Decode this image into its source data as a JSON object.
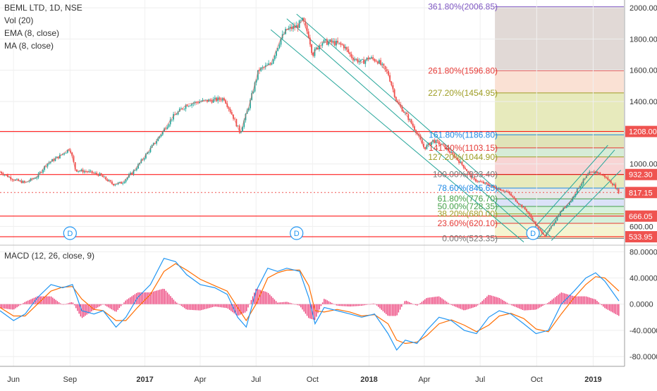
{
  "legend": {
    "symbol": "BEML LTD, 1D, NSE",
    "vol": "Vol (20)",
    "ema": "EMA (8, close)",
    "ma": "MA (8, close)",
    "macd": "MACD (12, 26, close, 9)"
  },
  "colors": {
    "up": "#26a69a",
    "down": "#ef5350",
    "channel": "#26a69a",
    "sr_line": "#ff0000",
    "macd_line": "#2196f3",
    "signal_line": "#ff6d00",
    "hist_pos": "#e91e63",
    "hist_neg": "#e91e63",
    "fib_label": "#4a4a4a",
    "price_tag_red": "#ef5350",
    "axis_text": "#333333"
  },
  "chart_data": [
    {
      "type": "candlestick",
      "title": "BEML LTD, 1D, NSE",
      "xlim": [
        "2016-05-10",
        "2019-02-20"
      ],
      "ylim": [
        480,
        2050
      ],
      "x_ticks": [
        "Jun",
        "Sep",
        "2017",
        "Apr",
        "Jul",
        "Oct",
        "2018",
        "Apr",
        "Jul",
        "Oct",
        "2019"
      ],
      "x_tick_dates": [
        "2016-06-01",
        "2016-09-01",
        "2017-01-01",
        "2017-04-01",
        "2017-07-01",
        "2017-10-01",
        "2018-01-01",
        "2018-04-01",
        "2018-07-01",
        "2018-10-01",
        "2019-01-01"
      ],
      "y_ticks": [
        "2000.00",
        "1800.00",
        "1600.00",
        "1400.00",
        "1200.00",
        "1000.00",
        "600.00"
      ],
      "y_tick_values": [
        2000,
        1800,
        1600,
        1400,
        1200,
        1000,
        600
      ],
      "price_path": [
        [
          "2016-05-10",
          950
        ],
        [
          "2016-06-01",
          900
        ],
        [
          "2016-06-20",
          880
        ],
        [
          "2016-07-10",
          920
        ],
        [
          "2016-07-25",
          1000
        ],
        [
          "2016-08-15",
          1050
        ],
        [
          "2016-09-01",
          1100
        ],
        [
          "2016-09-10",
          960
        ],
        [
          "2016-10-01",
          950
        ],
        [
          "2016-10-20",
          930
        ],
        [
          "2016-11-10",
          870
        ],
        [
          "2016-11-25",
          880
        ],
        [
          "2016-12-15",
          960
        ],
        [
          "2017-01-01",
          1050
        ],
        [
          "2017-01-20",
          1150
        ],
        [
          "2017-02-15",
          1300
        ],
        [
          "2017-03-10",
          1380
        ],
        [
          "2017-04-01",
          1400
        ],
        [
          "2017-04-25",
          1410
        ],
        [
          "2017-05-10",
          1420
        ],
        [
          "2017-05-25",
          1300
        ],
        [
          "2017-06-05",
          1200
        ],
        [
          "2017-06-20",
          1380
        ],
        [
          "2017-07-05",
          1600
        ],
        [
          "2017-07-25",
          1640
        ],
        [
          "2017-08-10",
          1800
        ],
        [
          "2017-08-20",
          1860
        ],
        [
          "2017-09-05",
          1880
        ],
        [
          "2017-09-15",
          1920
        ],
        [
          "2017-09-25",
          1820
        ],
        [
          "2017-10-01",
          1700
        ],
        [
          "2017-10-15",
          1780
        ],
        [
          "2017-11-01",
          1780
        ],
        [
          "2017-11-20",
          1760
        ],
        [
          "2017-12-05",
          1680
        ],
        [
          "2017-12-20",
          1650
        ],
        [
          "2018-01-01",
          1680
        ],
        [
          "2018-01-15",
          1660
        ],
        [
          "2018-02-01",
          1580
        ],
        [
          "2018-02-15",
          1400
        ],
        [
          "2018-03-05",
          1300
        ],
        [
          "2018-03-20",
          1200
        ],
        [
          "2018-04-01",
          1100
        ],
        [
          "2018-04-15",
          1150
        ],
        [
          "2018-05-01",
          1120
        ],
        [
          "2018-05-20",
          1050
        ],
        [
          "2018-06-05",
          980
        ],
        [
          "2018-06-20",
          900
        ],
        [
          "2018-07-05",
          880
        ],
        [
          "2018-07-25",
          850
        ],
        [
          "2018-08-15",
          820
        ],
        [
          "2018-09-01",
          750
        ],
        [
          "2018-09-15",
          700
        ],
        [
          "2018-09-28",
          620
        ],
        [
          "2018-10-05",
          580
        ],
        [
          "2018-10-15",
          540
        ],
        [
          "2018-10-25",
          600
        ],
        [
          "2018-11-10",
          700
        ],
        [
          "2018-11-25",
          760
        ],
        [
          "2018-12-10",
          860
        ],
        [
          "2018-12-25",
          940
        ],
        [
          "2019-01-05",
          950
        ],
        [
          "2019-01-20",
          920
        ],
        [
          "2019-02-05",
          860
        ],
        [
          "2019-02-12",
          817
        ]
      ],
      "fib_levels": [
        {
          "label": "361.80%(2006.85)",
          "value": 2006.85,
          "color": "#7e57c2"
        },
        {
          "label": "261.80%(1596.80)",
          "value": 1596.8,
          "color": "#e53935"
        },
        {
          "label": "227.20%(1454.95)",
          "value": 1454.95,
          "color": "#9e9d24"
        },
        {
          "label": "161.80%(1186.80)",
          "value": 1186.8,
          "color": "#1e88e5"
        },
        {
          "label": "141.40%(1103.15)",
          "value": 1103.15,
          "color": "#e53935"
        },
        {
          "label": "127.20%(1044.90)",
          "value": 1044.9,
          "color": "#9e9d24"
        },
        {
          "label": "100.00%(933.40)",
          "value": 933.4,
          "color": "#757575"
        },
        {
          "label": "78.60%(845.65)",
          "value": 845.65,
          "color": "#1e88e5"
        },
        {
          "label": "61.80%(776.70)",
          "value": 776.7,
          "color": "#43a047"
        },
        {
          "label": "50.00%(728.35)",
          "value": 728.35,
          "color": "#43a047"
        },
        {
          "label": "38.20%(680.00)",
          "value": 680.0,
          "color": "#9e9d24"
        },
        {
          "label": "23.60%(620.10)",
          "value": 620.1,
          "color": "#e53935"
        },
        {
          "label": "0.00%(523.35)",
          "value": 523.35,
          "color": "#757575"
        }
      ],
      "horizontal_levels": [
        1208.0,
        932.3,
        666.05,
        533.95
      ],
      "price_tags": [
        {
          "label": "1208.00",
          "value": 1208.0
        },
        {
          "label": "932.30",
          "value": 932.3
        },
        {
          "label": "817.15",
          "value": 817.15
        },
        {
          "label": "666.05",
          "value": 666.05
        },
        {
          "label": "533.95",
          "value": 533.95
        }
      ],
      "dividend_markers": [
        {
          "label": "D",
          "date": "2016-09-01"
        },
        {
          "label": "D",
          "date": "2017-09-05"
        },
        {
          "label": "D",
          "date": "2018-09-25"
        }
      ],
      "channels": [
        {
          "name": "down-channel",
          "lines": [
            [
              [
                "2017-08-20",
                1930
              ],
              [
                "2018-10-01",
                520
              ]
            ],
            [
              [
                "2017-09-05",
                1960
              ],
              [
                "2018-10-25",
                530
              ]
            ],
            [
              [
                "2017-07-25",
                1860
              ],
              [
                "2018-09-10",
                500
              ]
            ]
          ]
        },
        {
          "name": "up-channel",
          "lines": [
            [
              [
                "2018-10-05",
                530
              ],
              [
                "2019-02-05",
                1090
              ]
            ],
            [
              [
                "2018-09-20",
                560
              ],
              [
                "2019-01-25",
                1120
              ]
            ],
            [
              [
                "2018-10-25",
                510
              ],
              [
                "2019-02-15",
                960
              ]
            ]
          ]
        }
      ]
    },
    {
      "type": "macd",
      "title": "MACD (12, 26, close, 9)",
      "ylim": [
        -95,
        88
      ],
      "y_ticks": [
        "80.0000",
        "40.0000",
        "0.0000",
        "-40.0000",
        "-80.0000"
      ],
      "y_tick_values": [
        80,
        40,
        0,
        -40,
        -80
      ],
      "macd_line": [
        [
          "2016-05-10",
          -10
        ],
        [
          "2016-06-01",
          -25
        ],
        [
          "2016-06-20",
          -15
        ],
        [
          "2016-07-10",
          10
        ],
        [
          "2016-08-01",
          30
        ],
        [
          "2016-08-20",
          25
        ],
        [
          "2016-09-05",
          30
        ],
        [
          "2016-09-20",
          -10
        ],
        [
          "2016-10-10",
          -15
        ],
        [
          "2016-10-25",
          -10
        ],
        [
          "2016-11-15",
          -35
        ],
        [
          "2016-12-01",
          -20
        ],
        [
          "2016-12-20",
          10
        ],
        [
          "2017-01-10",
          30
        ],
        [
          "2017-02-01",
          70
        ],
        [
          "2017-02-20",
          65
        ],
        [
          "2017-03-10",
          45
        ],
        [
          "2017-04-01",
          30
        ],
        [
          "2017-04-25",
          25
        ],
        [
          "2017-05-15",
          15
        ],
        [
          "2017-06-01",
          -20
        ],
        [
          "2017-06-15",
          -35
        ],
        [
          "2017-07-01",
          20
        ],
        [
          "2017-07-20",
          55
        ],
        [
          "2017-08-05",
          50
        ],
        [
          "2017-08-20",
          55
        ],
        [
          "2017-09-10",
          50
        ],
        [
          "2017-09-25",
          10
        ],
        [
          "2017-10-05",
          -30
        ],
        [
          "2017-10-20",
          -5
        ],
        [
          "2017-11-10",
          -10
        ],
        [
          "2017-12-01",
          -15
        ],
        [
          "2017-12-20",
          -20
        ],
        [
          "2018-01-10",
          -15
        ],
        [
          "2018-02-01",
          -45
        ],
        [
          "2018-02-15",
          -70
        ],
        [
          "2018-03-01",
          -55
        ],
        [
          "2018-03-20",
          -60
        ],
        [
          "2018-04-05",
          -40
        ],
        [
          "2018-04-25",
          -20
        ],
        [
          "2018-05-15",
          -25
        ],
        [
          "2018-06-05",
          -40
        ],
        [
          "2018-06-25",
          -45
        ],
        [
          "2018-07-15",
          -20
        ],
        [
          "2018-08-01",
          -10
        ],
        [
          "2018-08-20",
          -15
        ],
        [
          "2018-09-10",
          -30
        ],
        [
          "2018-09-30",
          -45
        ],
        [
          "2018-10-20",
          -40
        ],
        [
          "2018-11-10",
          0
        ],
        [
          "2018-12-01",
          20
        ],
        [
          "2018-12-20",
          40
        ],
        [
          "2019-01-05",
          48
        ],
        [
          "2019-01-20",
          35
        ],
        [
          "2019-02-12",
          5
        ]
      ],
      "signal_line": [
        [
          "2016-05-10",
          -5
        ],
        [
          "2016-06-01",
          -18
        ],
        [
          "2016-06-20",
          -18
        ],
        [
          "2016-07-10",
          0
        ],
        [
          "2016-08-01",
          20
        ],
        [
          "2016-08-20",
          26
        ],
        [
          "2016-09-05",
          27
        ],
        [
          "2016-09-20",
          8
        ],
        [
          "2016-10-10",
          -8
        ],
        [
          "2016-10-25",
          -10
        ],
        [
          "2016-11-15",
          -25
        ],
        [
          "2016-12-01",
          -25
        ],
        [
          "2016-12-20",
          -5
        ],
        [
          "2017-01-10",
          15
        ],
        [
          "2017-02-01",
          50
        ],
        [
          "2017-02-20",
          62
        ],
        [
          "2017-03-10",
          52
        ],
        [
          "2017-04-01",
          38
        ],
        [
          "2017-04-25",
          28
        ],
        [
          "2017-05-15",
          20
        ],
        [
          "2017-06-01",
          -5
        ],
        [
          "2017-06-15",
          -25
        ],
        [
          "2017-07-01",
          0
        ],
        [
          "2017-07-20",
          40
        ],
        [
          "2017-08-05",
          48
        ],
        [
          "2017-08-20",
          52
        ],
        [
          "2017-09-10",
          52
        ],
        [
          "2017-09-25",
          28
        ],
        [
          "2017-10-05",
          -10
        ],
        [
          "2017-10-20",
          -12
        ],
        [
          "2017-11-10",
          -8
        ],
        [
          "2017-12-01",
          -12
        ],
        [
          "2017-12-20",
          -18
        ],
        [
          "2018-01-10",
          -16
        ],
        [
          "2018-02-01",
          -30
        ],
        [
          "2018-02-15",
          -55
        ],
        [
          "2018-03-01",
          -60
        ],
        [
          "2018-03-20",
          -58
        ],
        [
          "2018-04-05",
          -48
        ],
        [
          "2018-04-25",
          -30
        ],
        [
          "2018-05-15",
          -24
        ],
        [
          "2018-06-05",
          -32
        ],
        [
          "2018-06-25",
          -42
        ],
        [
          "2018-07-15",
          -32
        ],
        [
          "2018-08-01",
          -18
        ],
        [
          "2018-08-20",
          -14
        ],
        [
          "2018-09-10",
          -22
        ],
        [
          "2018-09-30",
          -38
        ],
        [
          "2018-10-20",
          -42
        ],
        [
          "2018-11-10",
          -15
        ],
        [
          "2018-12-01",
          10
        ],
        [
          "2018-12-20",
          30
        ],
        [
          "2019-01-05",
          42
        ],
        [
          "2019-01-20",
          40
        ],
        [
          "2019-02-12",
          20
        ]
      ]
    }
  ]
}
